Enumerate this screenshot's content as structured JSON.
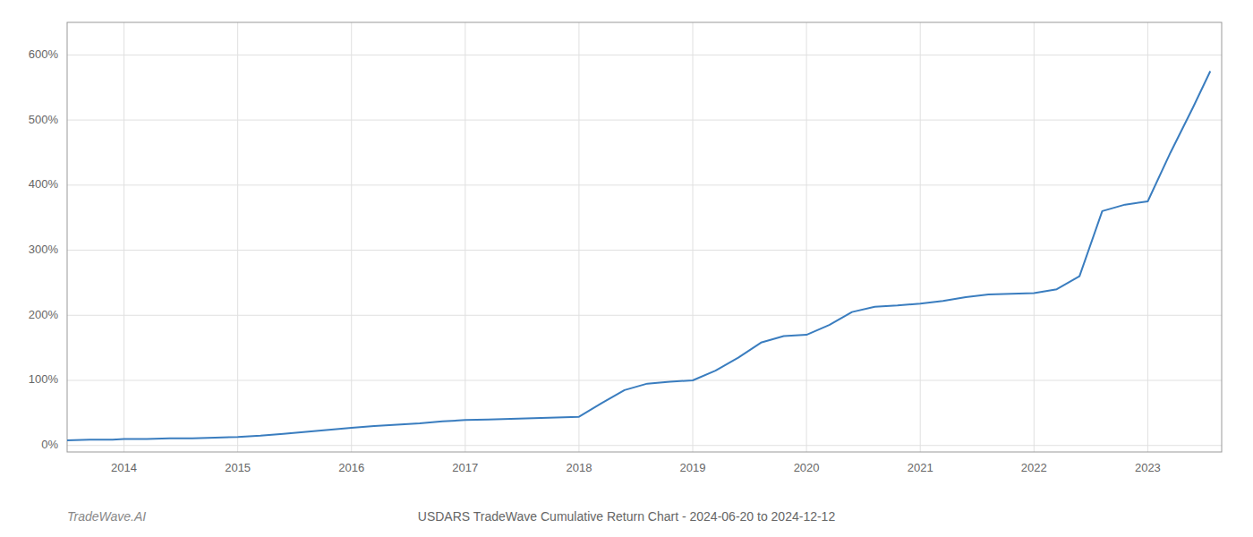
{
  "chart_data": {
    "type": "line",
    "title": "USDARS TradeWave Cumulative Return Chart - 2024-06-20 to 2024-12-12",
    "annotations": [
      "TradeWave.AI"
    ],
    "color": "#3a7dbf",
    "grid": true,
    "x": [
      2013.5,
      2013.7,
      2013.9,
      2014.0,
      2014.2,
      2014.4,
      2014.6,
      2014.8,
      2015.0,
      2015.2,
      2015.4,
      2015.6,
      2015.8,
      2016.0,
      2016.2,
      2016.4,
      2016.6,
      2016.8,
      2017.0,
      2017.2,
      2017.4,
      2017.6,
      2017.8,
      2018.0,
      2018.2,
      2018.4,
      2018.6,
      2018.8,
      2019.0,
      2019.2,
      2019.4,
      2019.6,
      2019.8,
      2020.0,
      2020.2,
      2020.4,
      2020.6,
      2020.8,
      2021.0,
      2021.2,
      2021.4,
      2021.6,
      2021.8,
      2022.0,
      2022.2,
      2022.4,
      2022.6,
      2022.8,
      2023.0,
      2023.2,
      2023.4,
      2023.55
    ],
    "values": [
      8,
      9,
      9,
      10,
      10,
      11,
      11,
      12,
      13,
      15,
      18,
      21,
      24,
      27,
      30,
      32,
      34,
      37,
      39,
      40,
      41,
      42,
      43,
      44,
      65,
      85,
      95,
      98,
      100,
      115,
      135,
      158,
      168,
      170,
      185,
      205,
      213,
      215,
      218,
      222,
      228,
      232,
      233,
      234,
      240,
      260,
      360,
      370,
      375,
      450,
      520,
      575
    ],
    "xlim": [
      2013.5,
      2023.65
    ],
    "ylim": [
      -10,
      650
    ],
    "xticks": [
      2014,
      2015,
      2016,
      2017,
      2018,
      2019,
      2020,
      2021,
      2022,
      2023
    ],
    "yticks": [
      {
        "value": 0,
        "label": "0%"
      },
      {
        "value": 100,
        "label": "100%"
      },
      {
        "value": 200,
        "label": "200%"
      },
      {
        "value": 300,
        "label": "300%"
      },
      {
        "value": 400,
        "label": "400%"
      },
      {
        "value": 500,
        "label": "500%"
      },
      {
        "value": 600,
        "label": "600%"
      }
    ]
  }
}
